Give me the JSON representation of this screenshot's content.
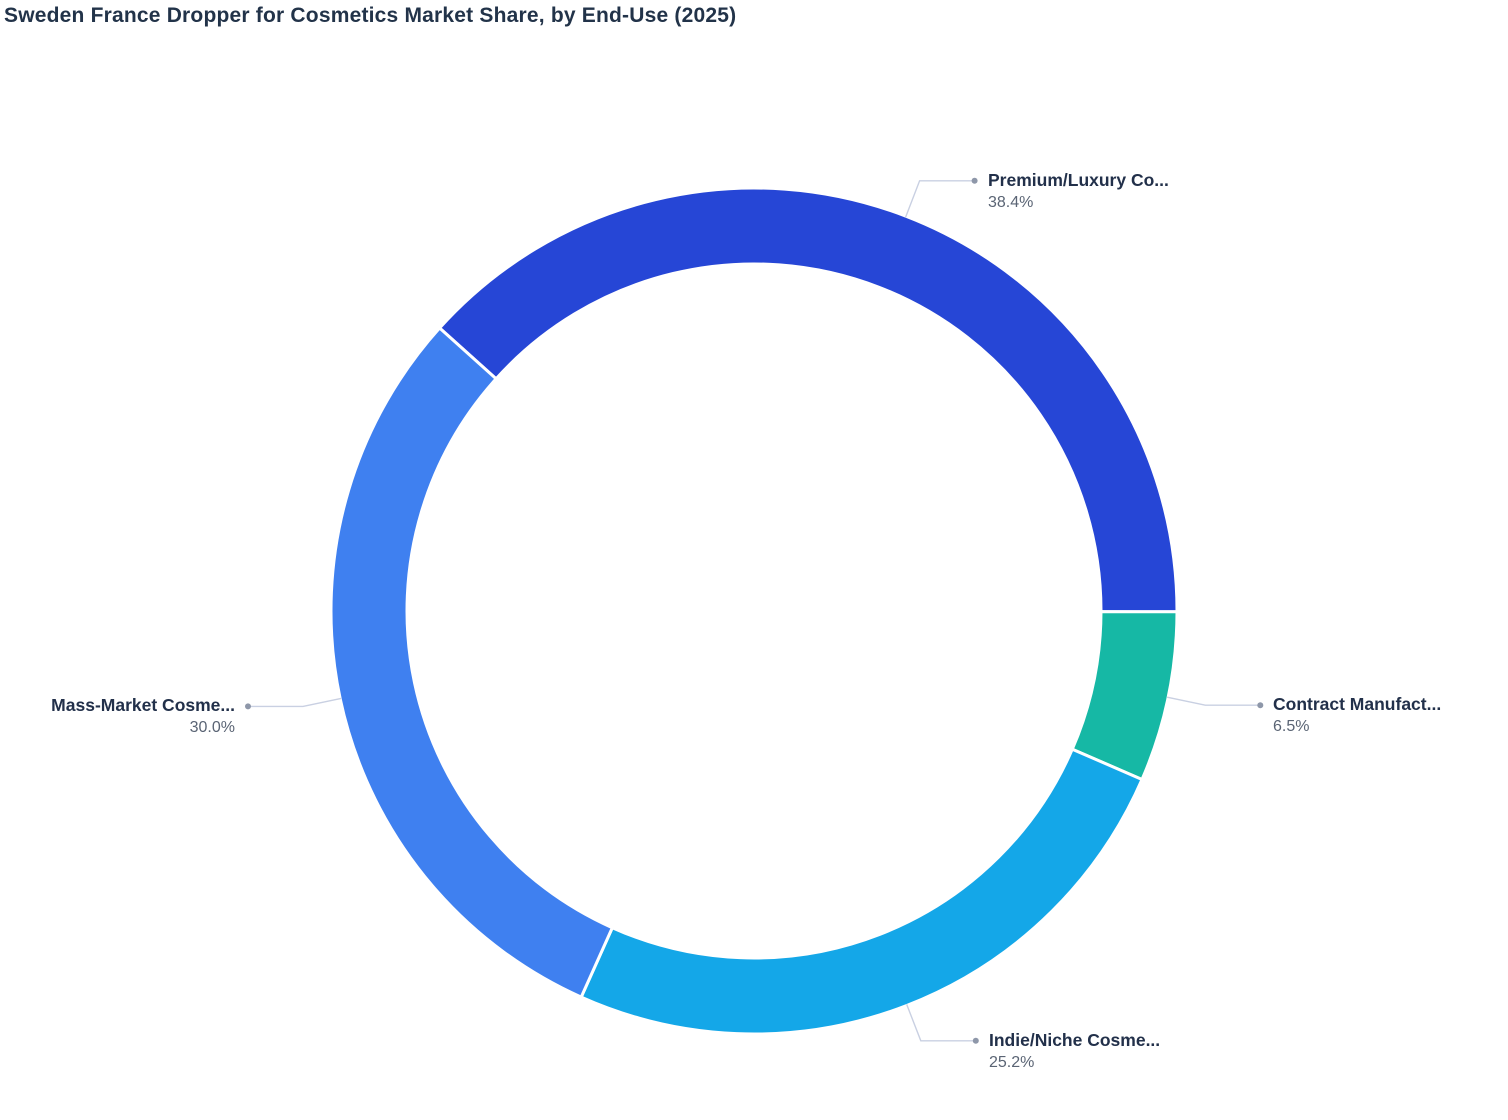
{
  "page": {
    "background": "#ffffff"
  },
  "chart_data": {
    "type": "pie",
    "variant": "donut",
    "title": "Sweden France Dropper for Cosmetics Market Share, by End-Use (2025)",
    "legend_position": "none",
    "labels": "outside-with-leader-lines",
    "start_angle_deg": 138,
    "inner_radius_ratio": 0.82,
    "slices": [
      {
        "label": "Premium/Luxury Co...",
        "value": 38.4,
        "pct_label": "38.4%",
        "color": "#2646D6"
      },
      {
        "label": "Contract Manufact...",
        "value": 6.5,
        "pct_label": "6.5%",
        "color": "#16B8A5"
      },
      {
        "label": "Indie/Niche Cosme...",
        "value": 25.2,
        "pct_label": "25.2%",
        "color": "#14A7E8"
      },
      {
        "label": "Mass-Market Cosme...",
        "value": 30.0,
        "pct_label": "30.0%",
        "color": "#3F80F0"
      }
    ],
    "colors": {
      "title_text": "#223349",
      "label_text": "#22304A",
      "pct_text": "#5A6474",
      "leader_line": "#C9D0E2",
      "leader_dot": "#8E97A9",
      "slice_border": "#ffffff"
    }
  }
}
